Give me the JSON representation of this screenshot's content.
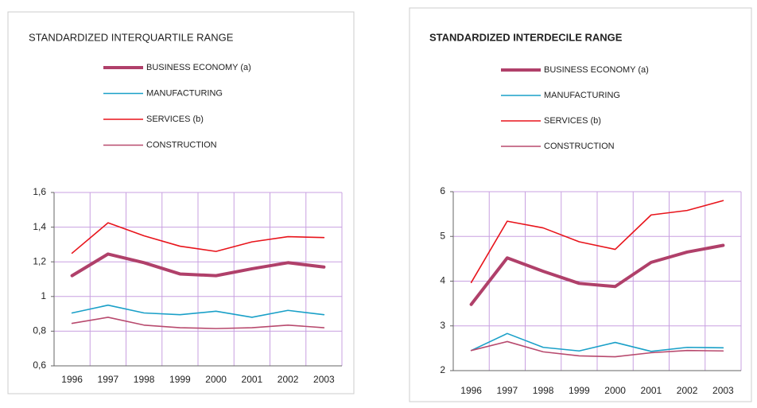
{
  "chart_data": [
    {
      "type": "line",
      "title": "STANDARDIZED INTERQUARTILE RANGE",
      "categories": [
        "1996",
        "1997",
        "1998",
        "1999",
        "2000",
        "2001",
        "2002",
        "2003"
      ],
      "series": [
        {
          "name": "BUSINESS ECONOMY (a)",
          "color": "#b0406a",
          "width": 4,
          "values": [
            1.12,
            1.245,
            1.195,
            1.13,
            1.12,
            1.16,
            1.195,
            1.17
          ]
        },
        {
          "name": "MANUFACTURING",
          "color": "#1aa0c8",
          "width": 1.6,
          "values": [
            0.905,
            0.95,
            0.905,
            0.895,
            0.915,
            0.88,
            0.92,
            0.895
          ]
        },
        {
          "name": "SERVICES (b)",
          "color": "#e8141b",
          "width": 1.6,
          "values": [
            1.25,
            1.425,
            1.35,
            1.29,
            1.26,
            1.315,
            1.345,
            1.34
          ]
        },
        {
          "name": "CONSTRUCTION",
          "color": "#b84a6e",
          "width": 1.6,
          "values": [
            0.845,
            0.88,
            0.835,
            0.82,
            0.815,
            0.82,
            0.835,
            0.82
          ]
        }
      ],
      "ylim": [
        0.6,
        1.6
      ],
      "yticks": [
        {
          "value": 0.6,
          "label": "0,6"
        },
        {
          "value": 0.8,
          "label": "0,8"
        },
        1,
        {
          "value": 1.2,
          "label": "1,2"
        },
        {
          "value": 1.4,
          "label": "1,4"
        },
        {
          "value": 1.6,
          "label": "1,6"
        }
      ],
      "grid": true
    },
    {
      "type": "line",
      "title": "STANDARDIZED INTERDECILE RANGE",
      "categories": [
        "1996",
        "1997",
        "1998",
        "1999",
        "2000",
        "2001",
        "2002",
        "2003"
      ],
      "series": [
        {
          "name": "BUSINESS ECONOMY (a)",
          "color": "#b0406a",
          "width": 4,
          "values": [
            3.48,
            4.52,
            4.22,
            3.95,
            3.88,
            4.42,
            4.65,
            4.8
          ]
        },
        {
          "name": "MANUFACTURING",
          "color": "#1aa0c8",
          "width": 1.6,
          "values": [
            2.45,
            2.83,
            2.52,
            2.44,
            2.63,
            2.43,
            2.52,
            2.51
          ]
        },
        {
          "name": "SERVICES (b)",
          "color": "#e8141b",
          "width": 1.6,
          "values": [
            3.97,
            5.34,
            5.19,
            4.88,
            4.71,
            5.48,
            5.58,
            5.8
          ]
        },
        {
          "name": "CONSTRUCTION",
          "color": "#b84a6e",
          "width": 1.6,
          "values": [
            2.45,
            2.65,
            2.42,
            2.33,
            2.31,
            2.4,
            2.45,
            2.44
          ]
        }
      ],
      "ylim": [
        2,
        6
      ],
      "yticks": [
        2,
        3,
        4,
        5,
        6
      ],
      "grid": true
    }
  ]
}
